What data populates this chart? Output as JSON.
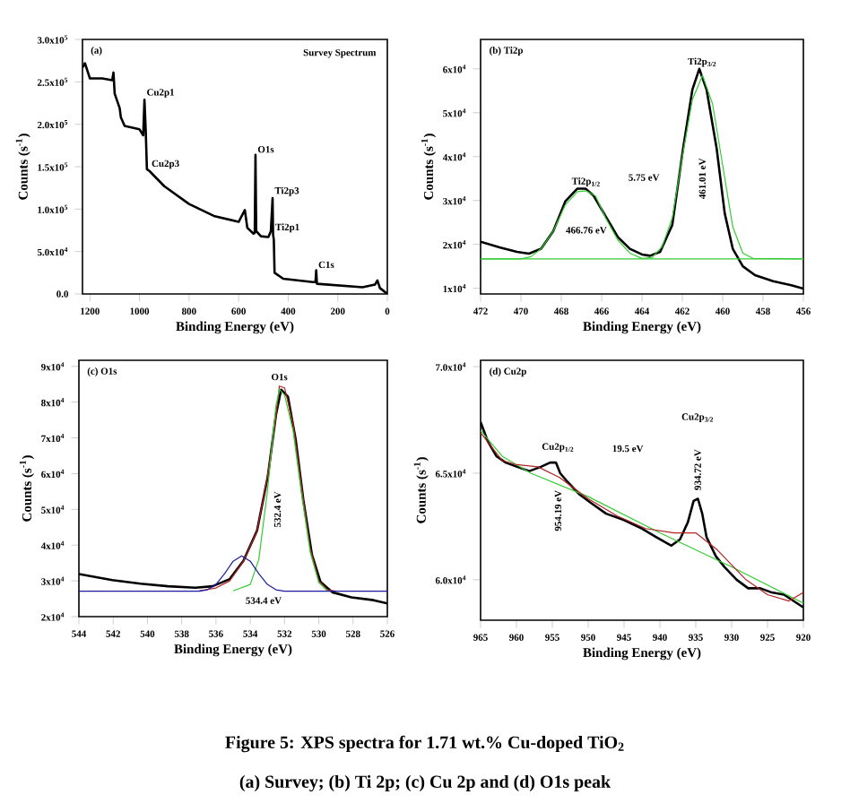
{
  "chart_data": [
    {
      "type": "line",
      "title": "(a)",
      "subtitle": "Survey Spectrum",
      "xlabel": "Binding Energy (eV)",
      "ylabel": "Counts (s$^{-1}$)",
      "xlim": [
        1230,
        0
      ],
      "ylim": [
        0,
        300000
      ],
      "xticks": [
        1200,
        1000,
        800,
        600,
        400,
        200,
        0
      ],
      "yticks": [
        {
          "value": 0,
          "label": "0.0"
        },
        {
          "value": 50000,
          "label": "5.0x10$^{4}$"
        },
        {
          "value": 100000,
          "label": "1.0x10$^{5}$"
        },
        {
          "value": 150000,
          "label": "1.5x10$^{5}$"
        },
        {
          "value": 200000,
          "label": "2.0x10$^{5}$"
        },
        {
          "value": 250000,
          "label": "2.5x10$^{5}$"
        },
        {
          "value": 300000,
          "label": "3.0x10$^{5}$"
        }
      ],
      "series": [
        {
          "color": "#000000",
          "x": [
            1230,
            1220,
            1200,
            1150,
            1110,
            1105,
            1100,
            1080,
            1075,
            1060,
            1000,
            985,
            980,
            975,
            970,
            960,
            900,
            800,
            700,
            600,
            575,
            565,
            540,
            535,
            532,
            529,
            510,
            480,
            470,
            463,
            461,
            458,
            455,
            420,
            300,
            290,
            287,
            284,
            100,
            50,
            40,
            30,
            0
          ],
          "values": [
            267000,
            272000,
            254000,
            254000,
            252000,
            261000,
            236000,
            219000,
            208000,
            198000,
            194000,
            187000,
            229000,
            194000,
            147000,
            145000,
            127000,
            106000,
            92000,
            85000,
            99000,
            78000,
            71000,
            72000,
            164000,
            74000,
            68000,
            67000,
            74000,
            113000,
            70000,
            64000,
            25000,
            18000,
            14000,
            14000,
            28000,
            12000,
            8000,
            11000,
            16000,
            7000,
            0
          ]
        }
      ],
      "annotations": [
        {
          "text": "Cu2p1",
          "x": 980,
          "y": 229000
        },
        {
          "text": "Cu2p3",
          "x": 960,
          "y": 145000
        },
        {
          "text": "O1s",
          "x": 532,
          "y": 164000
        },
        {
          "text": "Ti2p3",
          "x": 463,
          "y": 113000
        },
        {
          "text": "Ti2p1",
          "x": 461,
          "y": 70000
        },
        {
          "text": "C1s",
          "x": 287,
          "y": 28000
        }
      ]
    },
    {
      "type": "line",
      "title": "(b) Ti2p",
      "xlabel": "Binding Energy (eV)",
      "ylabel": "Counts (s$^{-1}$)",
      "xlim": [
        472,
        456
      ],
      "ylim": [
        8700,
        66700
      ],
      "xticks": [
        472,
        470,
        468,
        466,
        464,
        462,
        460,
        458,
        456
      ],
      "yticks": [
        {
          "value": 10000,
          "label": "1x10$^{4}$"
        },
        {
          "value": 20000,
          "label": "2x10$^{4}$"
        },
        {
          "value": 30000,
          "label": "3x10$^{4}$"
        },
        {
          "value": 40000,
          "label": "4x10$^{4}$"
        },
        {
          "value": 50000,
          "label": "5x10$^{4}$"
        },
        {
          "value": 60000,
          "label": "6x10$^{4}$"
        }
      ],
      "series": [
        {
          "color": "#000000",
          "x": [
            472,
            471.06,
            470.2,
            469.6,
            469.0,
            468.4,
            467.8,
            467.2,
            466.8,
            466.4,
            465.8,
            465.2,
            464.6,
            464.0,
            463.6,
            463.1,
            462.5,
            461.96,
            461.5,
            461.16,
            460.8,
            460.3,
            459.9,
            459.5,
            459.0,
            458.4,
            457.5,
            456.6,
            456.0
          ],
          "values": [
            20600,
            19300,
            18300,
            17900,
            19000,
            23000,
            29800,
            32700,
            32700,
            31100,
            26400,
            21700,
            19000,
            17700,
            17400,
            18300,
            24400,
            41900,
            55300,
            60000,
            55300,
            41900,
            27100,
            19000,
            15000,
            13000,
            11600,
            10700,
            9900
          ]
        },
        {
          "color": "#33cc33",
          "x": [
            472,
            470,
            469.5,
            469,
            468.4,
            467.8,
            467.2,
            466.76,
            466.3,
            465.8,
            465.2,
            464.6,
            464,
            463.5,
            463,
            462.5,
            462,
            461.5,
            461,
            460.5,
            460,
            459.5,
            459,
            458.5,
            456
          ],
          "values": [
            16700,
            16700,
            17200,
            19000,
            23000,
            29000,
            32000,
            32200,
            31000,
            26000,
            21000,
            18000,
            16800,
            17000,
            19500,
            26000,
            40000,
            53000,
            58500,
            52000,
            38000,
            24000,
            18000,
            16800,
            16700
          ]
        },
        {
          "color": "#33cc33",
          "x": [
            472,
            456
          ],
          "values": [
            16700,
            16700
          ]
        }
      ],
      "annotations": [
        {
          "text": "Ti2p$_{1/2}$",
          "x": 466.76,
          "y": 32700
        },
        {
          "text": "Ti2p$_{3/2}$",
          "x": 461.01,
          "y": 60000
        },
        "5.75 eV",
        "466.76 eV",
        "461.01 eV"
      ]
    },
    {
      "type": "line",
      "title": "(c) O1s",
      "xlabel": "Binding Energy (eV)",
      "ylabel": "Counts (s$^{-1}$)",
      "xlim": [
        544,
        526
      ],
      "ylim": [
        20000,
        91700
      ],
      "xticks": [
        544,
        542,
        540,
        538,
        536,
        534,
        532,
        530,
        528,
        526
      ],
      "yticks": [
        {
          "value": 20000,
          "label": "2x10$^{4}$"
        },
        {
          "value": 30000,
          "label": "3x10$^{4}$"
        },
        {
          "value": 40000,
          "label": "4x10$^{4}$"
        },
        {
          "value": 50000,
          "label": "5x10$^{4}$"
        },
        {
          "value": 60000,
          "label": "6x10$^{4}$"
        },
        {
          "value": 70000,
          "label": "7x10$^{4}$"
        },
        {
          "value": 80000,
          "label": "8x10$^{4}$"
        },
        {
          "value": 90000,
          "label": "9x10$^{4}$"
        }
      ],
      "series": [
        {
          "color": "#000000",
          "x": [
            544,
            542.05,
            540.4,
            538.8,
            537.2,
            536.2,
            535.2,
            534.4,
            533.6,
            532.97,
            532.5,
            532.2,
            531.8,
            531.35,
            530.9,
            530.4,
            529.9,
            529.2,
            528.1,
            526.8,
            526
          ],
          "values": [
            31900,
            30200,
            29200,
            28500,
            28100,
            28500,
            30500,
            35600,
            44100,
            59400,
            76400,
            83500,
            81500,
            69600,
            52600,
            37300,
            29700,
            26800,
            25400,
            24600,
            23700
          ]
        },
        {
          "color": "#b22222",
          "x": [
            537,
            536,
            535.2,
            534.4,
            533.6,
            533,
            532.5,
            532.3,
            532,
            531.5,
            531,
            530.5,
            530,
            529.5,
            529
          ],
          "values": [
            27200,
            28000,
            30000,
            35500,
            44000,
            59000,
            76000,
            84500,
            84000,
            74000,
            56000,
            39000,
            30000,
            27500,
            27100
          ]
        },
        {
          "color": "#33cc33",
          "x": [
            535,
            534,
            533.5,
            533,
            532.5,
            532.3,
            532,
            531.5,
            531,
            530.5,
            530,
            529.5,
            529
          ],
          "values": [
            27200,
            29000,
            36000,
            55000,
            79000,
            83500,
            82000,
            72000,
            54000,
            38000,
            29500,
            27200,
            27100
          ]
        },
        {
          "color": "#1a1aa0",
          "x": [
            544,
            537,
            536.5,
            536,
            535.5,
            535,
            534.5,
            534,
            533.5,
            533,
            532.5,
            532,
            526
          ],
          "values": [
            27100,
            27100,
            27500,
            29000,
            32000,
            35500,
            37000,
            35500,
            32000,
            29000,
            27500,
            27100,
            27100
          ]
        }
      ],
      "annotations": [
        {
          "text": "O1s",
          "x": 532.3,
          "y": 85500
        },
        "532.4 eV",
        {
          "text": "534.4 eV",
          "x": 534.4,
          "y": 26000
        }
      ]
    },
    {
      "type": "line",
      "title": "(d) Cu2p",
      "xlabel": "Binding Energy (eV)",
      "ylabel": "Counts (s$^{-1}$)",
      "xlim": [
        965,
        920
      ],
      "ylim": [
        58100,
        70300
      ],
      "xticks": [
        965,
        960,
        955,
        950,
        945,
        940,
        935,
        930,
        925,
        920
      ],
      "yticks": [
        {
          "value": 60000,
          "label": "6.0x10$^{4}$"
        },
        {
          "value": 65000,
          "label": "6.5x10$^{4}$"
        },
        {
          "value": 70000,
          "label": "7.0x10$^{4}$"
        }
      ],
      "series": [
        {
          "color": "#000000",
          "x": [
            965,
            964,
            962.8,
            961.5,
            959.9,
            958.2,
            956.6,
            955.3,
            954.5,
            953.9,
            952.9,
            951.2,
            949.6,
            947.5,
            945,
            942.5,
            940.5,
            938.4,
            937.2,
            936.1,
            935.3,
            934.7,
            934.1,
            933.5,
            932.2,
            931,
            929.3,
            927.7,
            926,
            924.4,
            922.7,
            920
          ],
          "values": [
            67400,
            66500,
            65800,
            65500,
            65300,
            65100,
            65300,
            65500,
            65500,
            65000,
            64600,
            64000,
            63600,
            63100,
            62800,
            62400,
            62000,
            61600,
            61900,
            62700,
            63700,
            63800,
            63100,
            62000,
            61100,
            60600,
            60000,
            59600,
            59600,
            59400,
            59300,
            58700
          ]
        },
        {
          "color": "#33cc33",
          "x": [
            965,
            962,
            958,
            950,
            940,
            930,
            920
          ],
          "values": [
            67000,
            65800,
            65000,
            63900,
            62200,
            60600,
            58900
          ]
        },
        {
          "color": "#b22222",
          "x": [
            965,
            962,
            960,
            957,
            954,
            950,
            946,
            942,
            938,
            935,
            932,
            928,
            925,
            922,
            920
          ],
          "values": [
            66900,
            65600,
            65400,
            65300,
            64800,
            63800,
            63000,
            62400,
            62200,
            62200,
            61400,
            60000,
            59300,
            59000,
            59400
          ]
        }
      ],
      "annotations": [
        {
          "text": "Cu2p$_{1/2}$",
          "x": 954.19,
          "y": 65900
        },
        "Cu2p$_{3/2}$",
        "19.5 eV",
        {
          "text": "954.19 eV",
          "x": 954.19,
          "y": 64300
        },
        {
          "text": "934.72 eV",
          "x": 934.72,
          "y": 64100
        },
        "Figure 5: XPS spectra for 1.71 wt.% Cu-doped TiO$_{2}$",
        "(a) Survey; (b) Ti 2p; (c) Cu 2p and (d) O1s peak"
      ]
    }
  ]
}
